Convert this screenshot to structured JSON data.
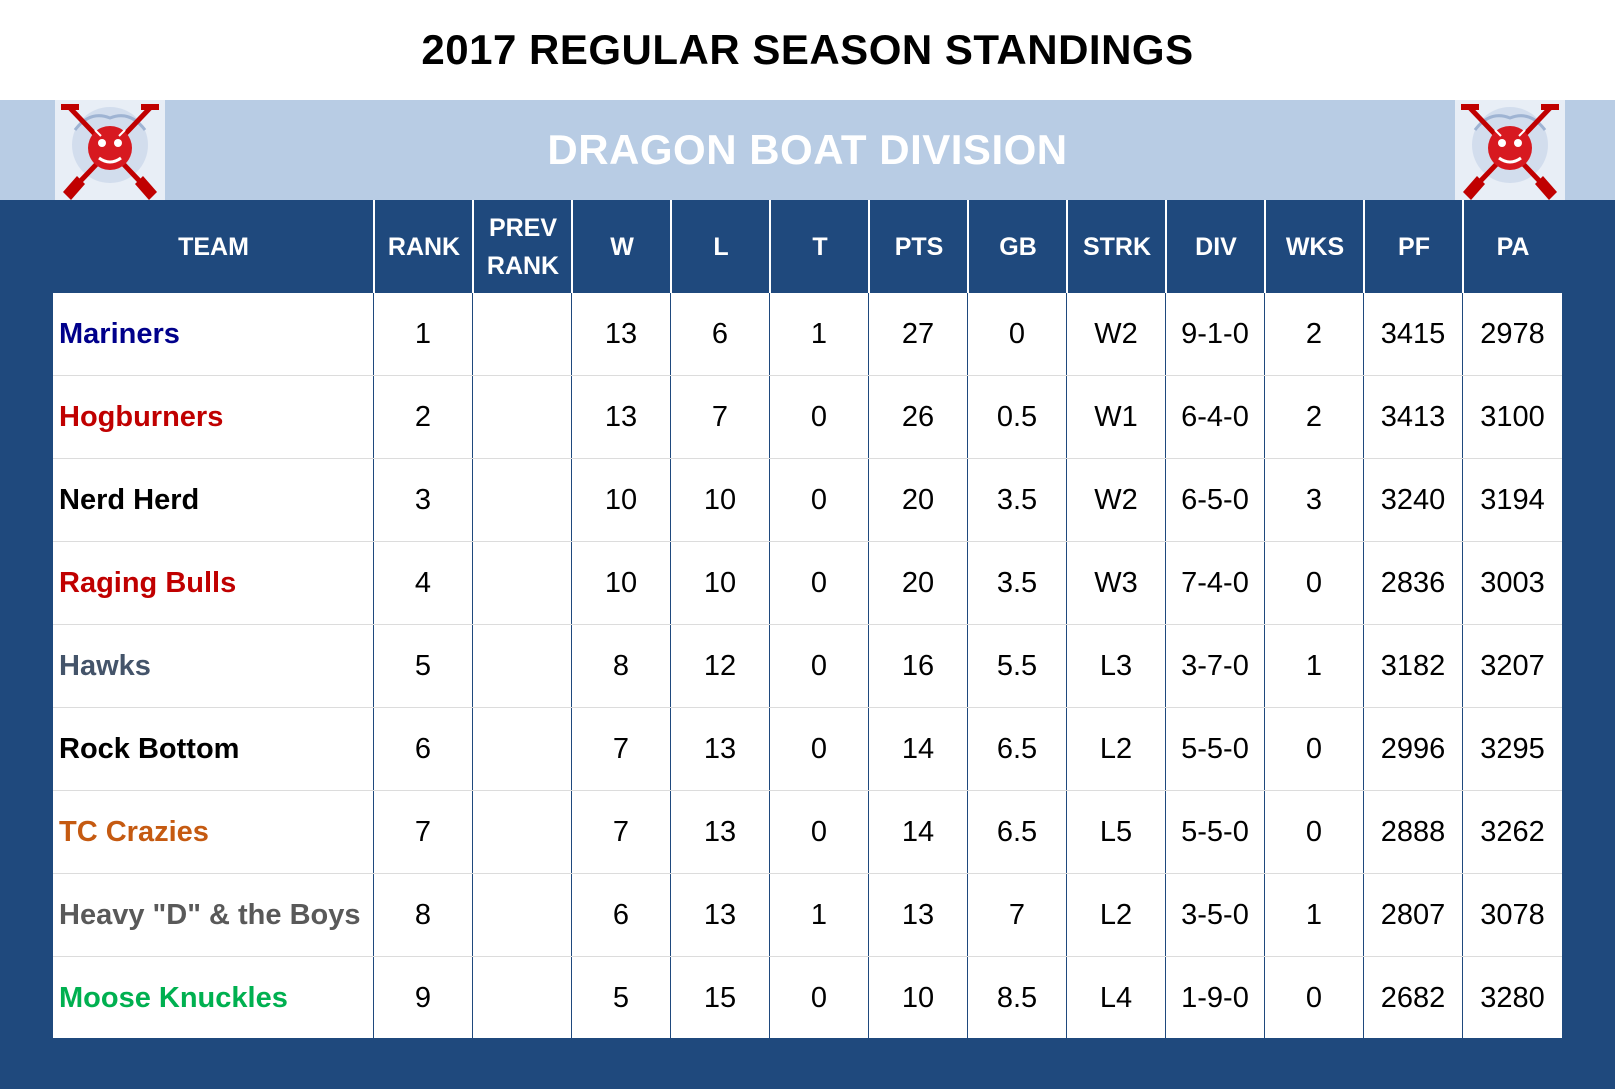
{
  "title": "2017 REGULAR SEASON STANDINGS",
  "division": "DRAGON BOAT DIVISION",
  "colors": {
    "background": "#1f497d",
    "division_band": "#b8cce4",
    "team_colors": [
      "#00008b",
      "#c00000",
      "#000000",
      "#c00000",
      "#44546a",
      "#000000",
      "#c55a11",
      "#595959",
      "#00b050"
    ]
  },
  "logo_icon": "dragon-oars-logo",
  "headers": {
    "team": "TEAM",
    "rank": "RANK",
    "prev_rank_1": "PREV",
    "prev_rank_2": "RANK",
    "w": "W",
    "l": "L",
    "t": "T",
    "pts": "PTS",
    "gb": "GB",
    "strk": "STRK",
    "div": "DIV",
    "wks": "WKS",
    "pf": "PF",
    "pa": "PA"
  },
  "rows": [
    {
      "team": "Mariners",
      "rank": "1",
      "prev": "",
      "w": "13",
      "l": "6",
      "t": "1",
      "pts": "27",
      "gb": "0",
      "strk": "W2",
      "div": "9-1-0",
      "wks": "2",
      "pf": "3415",
      "pa": "2978"
    },
    {
      "team": "Hogburners",
      "rank": "2",
      "prev": "",
      "w": "13",
      "l": "7",
      "t": "0",
      "pts": "26",
      "gb": "0.5",
      "strk": "W1",
      "div": "6-4-0",
      "wks": "2",
      "pf": "3413",
      "pa": "3100"
    },
    {
      "team": "Nerd Herd",
      "rank": "3",
      "prev": "",
      "w": "10",
      "l": "10",
      "t": "0",
      "pts": "20",
      "gb": "3.5",
      "strk": "W2",
      "div": "6-5-0",
      "wks": "3",
      "pf": "3240",
      "pa": "3194"
    },
    {
      "team": "Raging Bulls",
      "rank": "4",
      "prev": "",
      "w": "10",
      "l": "10",
      "t": "0",
      "pts": "20",
      "gb": "3.5",
      "strk": "W3",
      "div": "7-4-0",
      "wks": "0",
      "pf": "2836",
      "pa": "3003"
    },
    {
      "team": "Hawks",
      "rank": "5",
      "prev": "",
      "w": "8",
      "l": "12",
      "t": "0",
      "pts": "16",
      "gb": "5.5",
      "strk": "L3",
      "div": "3-7-0",
      "wks": "1",
      "pf": "3182",
      "pa": "3207"
    },
    {
      "team": "Rock Bottom",
      "rank": "6",
      "prev": "",
      "w": "7",
      "l": "13",
      "t": "0",
      "pts": "14",
      "gb": "6.5",
      "strk": "L2",
      "div": "5-5-0",
      "wks": "0",
      "pf": "2996",
      "pa": "3295"
    },
    {
      "team": "TC Crazies",
      "rank": "7",
      "prev": "",
      "w": "7",
      "l": "13",
      "t": "0",
      "pts": "14",
      "gb": "6.5",
      "strk": "L5",
      "div": "5-5-0",
      "wks": "0",
      "pf": "2888",
      "pa": "3262"
    },
    {
      "team": "Heavy \"D\" & the Boys",
      "rank": "8",
      "prev": "",
      "w": "6",
      "l": "13",
      "t": "1",
      "pts": "13",
      "gb": "7",
      "strk": "L2",
      "div": "3-5-0",
      "wks": "1",
      "pf": "2807",
      "pa": "3078"
    },
    {
      "team": "Moose Knuckles",
      "rank": "9",
      "prev": "",
      "w": "5",
      "l": "15",
      "t": "0",
      "pts": "10",
      "gb": "8.5",
      "strk": "L4",
      "div": "1-9-0",
      "wks": "0",
      "pf": "2682",
      "pa": "3280"
    }
  ]
}
